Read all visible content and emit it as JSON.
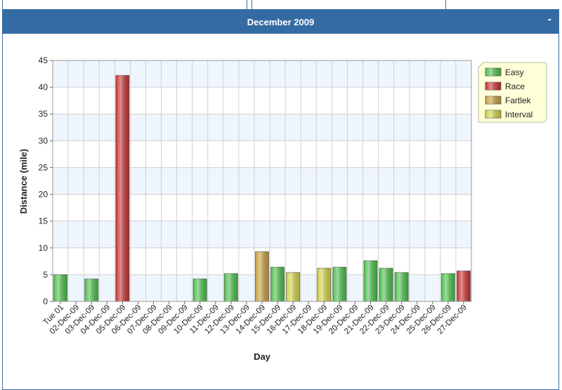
{
  "panel": {
    "title": "December 2009",
    "collapse_label": "-"
  },
  "chart_data": {
    "type": "bar",
    "xlabel": "Day",
    "ylabel": "Distance (mile)",
    "ylim": [
      0,
      45
    ],
    "yticks": [
      0,
      5,
      10,
      15,
      20,
      25,
      30,
      35,
      40,
      45
    ],
    "grid": true,
    "legend_position": "top-right",
    "categories": [
      "Tue 01",
      "02-Dec-09",
      "03-Dec-09",
      "04-Dec-09",
      "05-Dec-09",
      "06-Dec-09",
      "07-Dec-09",
      "08-Dec-09",
      "09-Dec-09",
      "10-Dec-09",
      "11-Dec-09",
      "12-Dec-09",
      "13-Dec-09",
      "14-Dec-09",
      "15-Dec-09",
      "16-Dec-09",
      "17-Dec-09",
      "18-Dec-09",
      "19-Dec-09",
      "20-Dec-09",
      "21-Dec-09",
      "22-Dec-09",
      "23-Dec-09",
      "24-Dec-09",
      "25-Dec-09",
      "26-Dec-09",
      "27-Dec-09"
    ],
    "series": [
      {
        "name": "Easy",
        "color": "#4cc04c",
        "values": [
          5.0,
          null,
          4.2,
          null,
          null,
          null,
          null,
          null,
          null,
          4.2,
          null,
          5.2,
          null,
          null,
          6.4,
          null,
          null,
          null,
          6.4,
          null,
          7.6,
          6.2,
          5.4,
          null,
          null,
          5.2,
          null
        ]
      },
      {
        "name": "Race",
        "color": "#c83232",
        "values": [
          null,
          null,
          null,
          null,
          42.2,
          null,
          null,
          null,
          null,
          null,
          null,
          null,
          null,
          null,
          null,
          null,
          null,
          null,
          null,
          null,
          null,
          null,
          null,
          null,
          null,
          null,
          5.7
        ]
      },
      {
        "name": "Fartlek",
        "color": "#c8a040",
        "values": [
          null,
          null,
          null,
          null,
          null,
          null,
          null,
          null,
          null,
          null,
          null,
          null,
          null,
          9.3,
          null,
          null,
          null,
          null,
          null,
          null,
          null,
          null,
          null,
          null,
          null,
          null,
          null
        ]
      },
      {
        "name": "Interval",
        "color": "#d2d248",
        "values": [
          null,
          null,
          null,
          null,
          null,
          null,
          null,
          null,
          null,
          null,
          null,
          null,
          null,
          null,
          null,
          5.4,
          null,
          6.2,
          null,
          null,
          null,
          null,
          null,
          null,
          null,
          null,
          null
        ]
      }
    ]
  }
}
